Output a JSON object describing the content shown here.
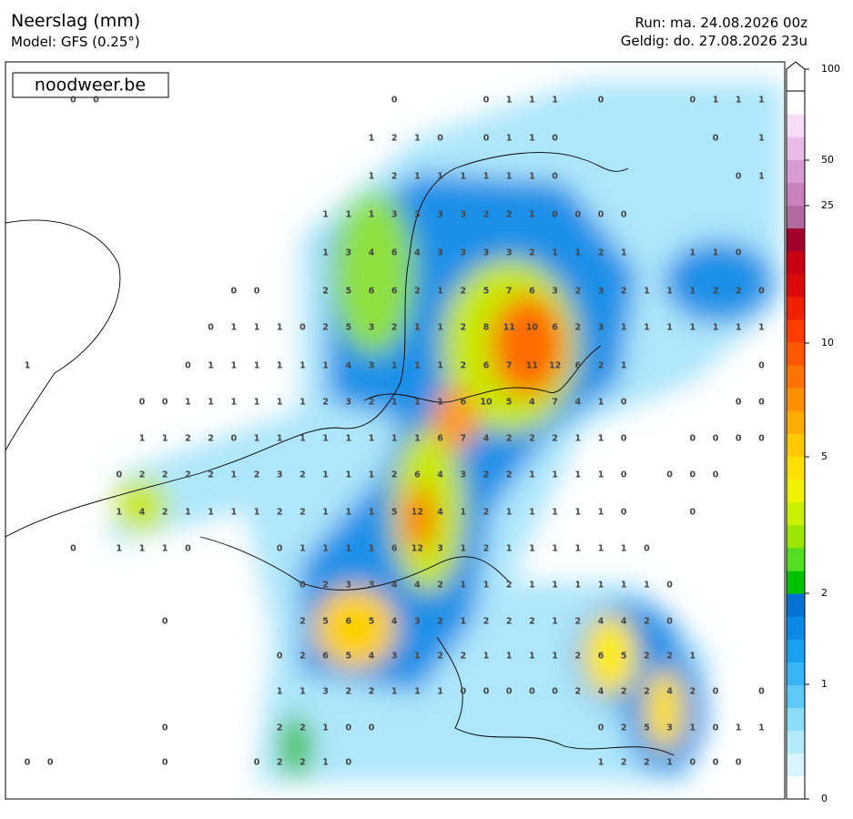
{
  "header": {
    "title": "Neerslag (mm)",
    "model": "Model: GFS (0.25°)",
    "run": "Run: ma. 24.08.2026 00z",
    "valid": "Geldig: do. 27.08.2026 23u"
  },
  "logo": "noodweer.be",
  "colorbar": {
    "ticks": [
      100,
      50,
      25,
      10,
      5,
      2,
      1,
      0
    ]
  },
  "grid": {
    "rows": [
      [
        null,
        null,
        0,
        0,
        null,
        null,
        null,
        null,
        null,
        null,
        null,
        null,
        null,
        null,
        null,
        null,
        0,
        null,
        null,
        null,
        0,
        1,
        1,
        1,
        null,
        0,
        null,
        null,
        null,
        0,
        1,
        1,
        1
      ],
      [
        null,
        null,
        null,
        null,
        null,
        null,
        null,
        null,
        null,
        null,
        null,
        null,
        null,
        null,
        null,
        1,
        2,
        1,
        0,
        null,
        0,
        1,
        1,
        0,
        null,
        null,
        null,
        null,
        null,
        null,
        0,
        null,
        1
      ],
      [
        null,
        null,
        null,
        null,
        null,
        null,
        null,
        null,
        null,
        null,
        null,
        null,
        null,
        null,
        null,
        1,
        2,
        1,
        1,
        1,
        1,
        1,
        1,
        0,
        null,
        null,
        null,
        null,
        null,
        null,
        null,
        0,
        1
      ],
      [
        null,
        null,
        null,
        null,
        null,
        null,
        null,
        null,
        null,
        null,
        null,
        null,
        null,
        1,
        1,
        1,
        3,
        3,
        3,
        3,
        2,
        2,
        1,
        0,
        0,
        0,
        0,
        null,
        null,
        null,
        null,
        null,
        null
      ],
      [
        null,
        null,
        null,
        null,
        null,
        null,
        null,
        null,
        null,
        null,
        null,
        null,
        null,
        1,
        3,
        4,
        6,
        4,
        3,
        3,
        3,
        3,
        2,
        1,
        1,
        2,
        1,
        null,
        null,
        1,
        1,
        0,
        null
      ],
      [
        null,
        null,
        null,
        null,
        null,
        null,
        null,
        null,
        null,
        0,
        0,
        null,
        null,
        2,
        5,
        6,
        6,
        2,
        1,
        2,
        5,
        7,
        6,
        3,
        2,
        3,
        2,
        1,
        1,
        1,
        2,
        2,
        0
      ],
      [
        null,
        null,
        null,
        null,
        null,
        null,
        null,
        null,
        0,
        1,
        1,
        1,
        0,
        2,
        5,
        3,
        2,
        1,
        1,
        2,
        8,
        11,
        10,
        6,
        2,
        3,
        1,
        1,
        1,
        1,
        1,
        1,
        1
      ],
      [
        1,
        null,
        null,
        null,
        null,
        null,
        null,
        0,
        1,
        1,
        1,
        1,
        1,
        1,
        4,
        3,
        1,
        1,
        1,
        2,
        6,
        7,
        11,
        12,
        6,
        2,
        1,
        null,
        null,
        null,
        null,
        null,
        0
      ],
      [
        null,
        null,
        null,
        null,
        null,
        0,
        0,
        1,
        1,
        1,
        1,
        1,
        1,
        2,
        3,
        2,
        1,
        1,
        1,
        6,
        10,
        5,
        4,
        7,
        4,
        1,
        0,
        null,
        null,
        null,
        null,
        0,
        0
      ],
      [
        null,
        null,
        null,
        null,
        null,
        1,
        1,
        2,
        2,
        0,
        1,
        1,
        1,
        1,
        1,
        1,
        1,
        1,
        6,
        7,
        4,
        2,
        2,
        2,
        1,
        1,
        0,
        null,
        null,
        0,
        0,
        0,
        0
      ],
      [
        null,
        null,
        null,
        null,
        0,
        2,
        2,
        2,
        2,
        1,
        2,
        3,
        2,
        1,
        1,
        1,
        2,
        6,
        4,
        3,
        2,
        2,
        1,
        1,
        1,
        1,
        0,
        null,
        0,
        0,
        0,
        null,
        null
      ],
      [
        null,
        null,
        null,
        null,
        1,
        4,
        2,
        1,
        1,
        1,
        1,
        2,
        2,
        1,
        1,
        1,
        5,
        12,
        4,
        1,
        2,
        1,
        1,
        1,
        1,
        1,
        0,
        null,
        null,
        0,
        null,
        null,
        null
      ],
      [
        null,
        null,
        0,
        null,
        1,
        1,
        1,
        0,
        null,
        null,
        null,
        0,
        1,
        1,
        1,
        1,
        6,
        12,
        3,
        1,
        2,
        1,
        1,
        1,
        1,
        1,
        1,
        0,
        null,
        null,
        null,
        null,
        null
      ],
      [
        null,
        null,
        null,
        null,
        null,
        null,
        null,
        null,
        null,
        null,
        null,
        null,
        0,
        2,
        3,
        3,
        4,
        4,
        2,
        1,
        1,
        2,
        1,
        1,
        1,
        1,
        1,
        1,
        0,
        null,
        null,
        null,
        null
      ],
      [
        null,
        null,
        null,
        null,
        null,
        null,
        0,
        null,
        null,
        null,
        null,
        null,
        2,
        5,
        6,
        5,
        4,
        3,
        2,
        1,
        2,
        2,
        2,
        1,
        2,
        4,
        4,
        2,
        0,
        null,
        null,
        null,
        null
      ],
      [
        null,
        null,
        null,
        null,
        null,
        null,
        null,
        null,
        null,
        null,
        null,
        0,
        2,
        6,
        5,
        4,
        3,
        1,
        2,
        2,
        1,
        1,
        1,
        1,
        2,
        6,
        5,
        2,
        2,
        1,
        null,
        null,
        null
      ],
      [
        null,
        null,
        null,
        null,
        null,
        null,
        null,
        null,
        null,
        null,
        null,
        1,
        1,
        3,
        2,
        2,
        1,
        1,
        1,
        0,
        0,
        0,
        0,
        0,
        2,
        4,
        2,
        2,
        4,
        2,
        0,
        null,
        0
      ],
      [
        null,
        null,
        null,
        null,
        null,
        null,
        0,
        null,
        null,
        null,
        null,
        2,
        2,
        1,
        0,
        0,
        null,
        null,
        null,
        null,
        null,
        null,
        null,
        null,
        null,
        0,
        2,
        5,
        3,
        1,
        0,
        1,
        1
      ],
      [
        0,
        0,
        null,
        null,
        null,
        null,
        0,
        null,
        null,
        null,
        0,
        2,
        2,
        1,
        0,
        null,
        null,
        null,
        null,
        null,
        null,
        null,
        null,
        null,
        null,
        1,
        2,
        2,
        1,
        0,
        0,
        0,
        null
      ]
    ]
  }
}
